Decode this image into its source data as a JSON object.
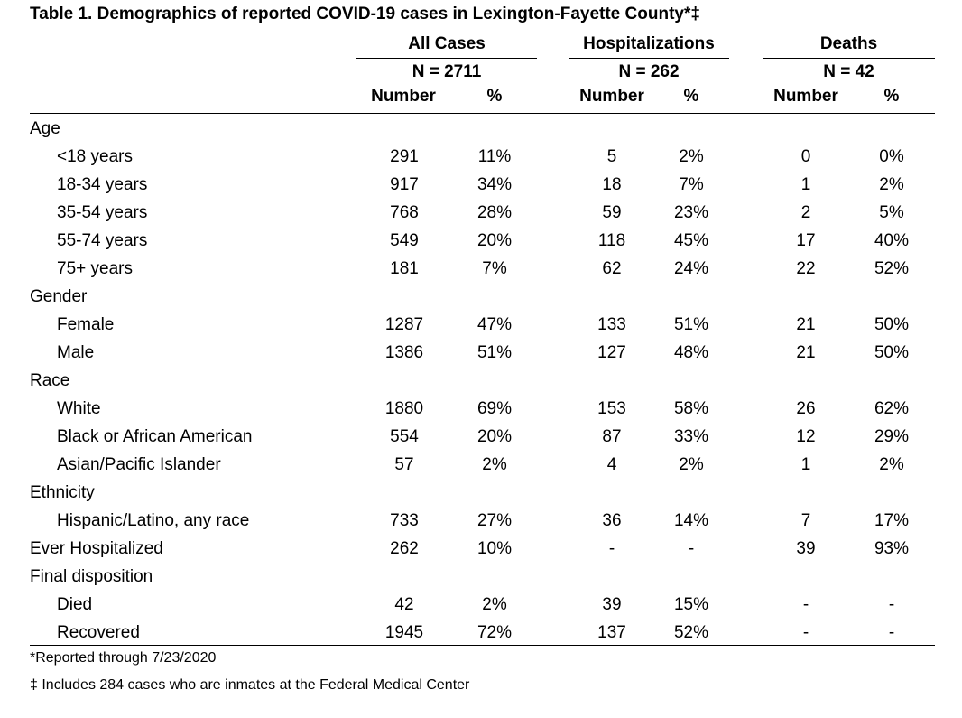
{
  "title": "Table 1. Demographics of reported COVID-19 cases in Lexington-Fayette County*‡",
  "groups": [
    {
      "name": "All Cases",
      "n": "N = 2711"
    },
    {
      "name": "Hospitalizations",
      "n": "N = 262"
    },
    {
      "name": "Deaths",
      "n": "N = 42"
    }
  ],
  "col_headers": [
    "Number",
    "%",
    "Number",
    "%",
    "Number",
    "%"
  ],
  "rows": [
    {
      "label": "Age",
      "sub": false,
      "cells": [
        "",
        "",
        "",
        "",
        "",
        ""
      ]
    },
    {
      "label": "<18 years",
      "sub": true,
      "cells": [
        "291",
        "11%",
        "5",
        "2%",
        "0",
        "0%"
      ]
    },
    {
      "label": "18-34 years",
      "sub": true,
      "cells": [
        "917",
        "34%",
        "18",
        "7%",
        "1",
        "2%"
      ]
    },
    {
      "label": "35-54 years",
      "sub": true,
      "cells": [
        "768",
        "28%",
        "59",
        "23%",
        "2",
        "5%"
      ]
    },
    {
      "label": "55-74 years",
      "sub": true,
      "cells": [
        "549",
        "20%",
        "118",
        "45%",
        "17",
        "40%"
      ]
    },
    {
      "label": "75+ years",
      "sub": true,
      "cells": [
        "181",
        "7%",
        "62",
        "24%",
        "22",
        "52%"
      ]
    },
    {
      "label": "Gender",
      "sub": false,
      "cells": [
        "",
        "",
        "",
        "",
        "",
        ""
      ]
    },
    {
      "label": "Female",
      "sub": true,
      "cells": [
        "1287",
        "47%",
        "133",
        "51%",
        "21",
        "50%"
      ]
    },
    {
      "label": "Male",
      "sub": true,
      "cells": [
        "1386",
        "51%",
        "127",
        "48%",
        "21",
        "50%"
      ]
    },
    {
      "label": "Race",
      "sub": false,
      "cells": [
        "",
        "",
        "",
        "",
        "",
        ""
      ]
    },
    {
      "label": "White",
      "sub": true,
      "cells": [
        "1880",
        "69%",
        "153",
        "58%",
        "26",
        "62%"
      ]
    },
    {
      "label": "Black or African American",
      "sub": true,
      "cells": [
        "554",
        "20%",
        "87",
        "33%",
        "12",
        "29%"
      ]
    },
    {
      "label": "Asian/Pacific Islander",
      "sub": true,
      "cells": [
        "57",
        "2%",
        "4",
        "2%",
        "1",
        "2%"
      ]
    },
    {
      "label": "Ethnicity",
      "sub": false,
      "cells": [
        "",
        "",
        "",
        "",
        "",
        ""
      ]
    },
    {
      "label": "Hispanic/Latino, any race",
      "sub": true,
      "cells": [
        "733",
        "27%",
        "36",
        "14%",
        "7",
        "17%"
      ]
    },
    {
      "label": "Ever Hospitalized",
      "sub": false,
      "cells": [
        "262",
        "10%",
        "-",
        "-",
        "39",
        "93%"
      ]
    },
    {
      "label": "Final disposition",
      "sub": false,
      "cells": [
        "",
        "",
        "",
        "",
        "",
        ""
      ]
    },
    {
      "label": "Died",
      "sub": true,
      "cells": [
        "42",
        "2%",
        "39",
        "15%",
        "-",
        "-"
      ]
    },
    {
      "label": "Recovered",
      "sub": true,
      "cells": [
        "1945",
        "72%",
        "137",
        "52%",
        "-",
        "-"
      ]
    }
  ],
  "footnotes": [
    "*Reported through 7/23/2020",
    "‡ Includes 284 cases who are inmates at the Federal Medical Center"
  ]
}
